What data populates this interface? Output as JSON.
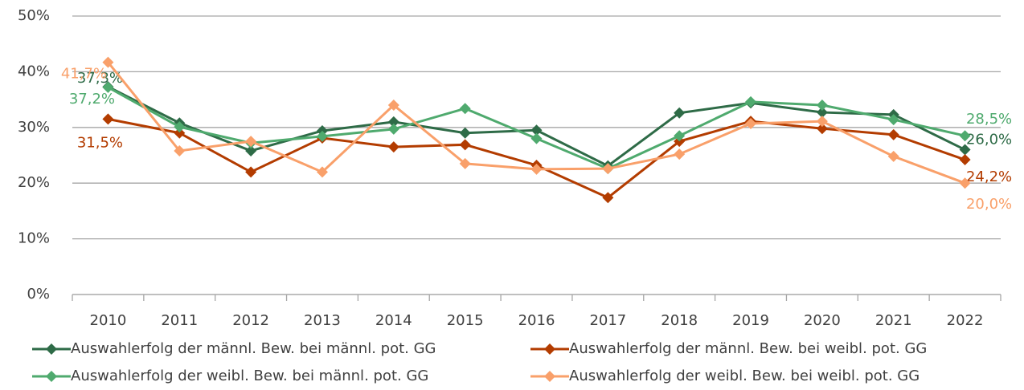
{
  "chart_data": {
    "type": "line",
    "categories": [
      "2010",
      "2011",
      "2012",
      "2013",
      "2014",
      "2015",
      "2016",
      "2017",
      "2018",
      "2019",
      "2020",
      "2021",
      "2022"
    ],
    "series": [
      {
        "name": "Auswahlerfolg der männl. Bew. bei männl. pot. GG",
        "color": "#2e6b47",
        "values": [
          37.3,
          30.8,
          25.8,
          29.4,
          31.0,
          29.0,
          29.5,
          23.1,
          32.6,
          34.4,
          32.7,
          32.3,
          26.0
        ],
        "value_labels": [
          "37,3%",
          null,
          null,
          null,
          null,
          null,
          null,
          null,
          null,
          null,
          null,
          null,
          "26,0%"
        ]
      },
      {
        "name": "Auswahlerfolg der männl. Bew. bei weibl. pot. GG",
        "color": "#b33c00",
        "values": [
          31.5,
          29.0,
          22.0,
          28.1,
          26.5,
          26.9,
          23.2,
          17.4,
          27.5,
          31.1,
          29.8,
          28.7,
          24.2
        ],
        "value_labels": [
          "31,5%",
          null,
          null,
          null,
          null,
          null,
          null,
          null,
          null,
          null,
          null,
          null,
          "24,2%"
        ]
      },
      {
        "name": "Auswahlerfolg der weibl. Bew. bei männl. pot. GG",
        "color": "#4faa6e",
        "values": [
          37.2,
          30.1,
          27.2,
          28.4,
          29.7,
          33.4,
          28.0,
          22.6,
          28.5,
          34.6,
          34.0,
          31.4,
          28.5
        ],
        "value_labels": [
          "37,2%",
          null,
          null,
          null,
          null,
          null,
          null,
          null,
          null,
          null,
          null,
          null,
          "28,5%"
        ]
      },
      {
        "name": "Auswahlerfolg der weibl. Bew. bei weibl. pot. GG",
        "color": "#f9a06a",
        "values": [
          41.7,
          25.8,
          27.5,
          22.0,
          34.0,
          23.5,
          22.5,
          22.6,
          25.2,
          30.7,
          31.1,
          24.8,
          20.0
        ],
        "value_labels": [
          "41,7%",
          null,
          null,
          null,
          null,
          null,
          null,
          null,
          null,
          null,
          null,
          null,
          "20,0%"
        ]
      }
    ],
    "ylim": [
      0,
      50
    ],
    "yticks": [
      {
        "value": 0,
        "label": "0%"
      },
      {
        "value": 10,
        "label": "10%"
      },
      {
        "value": 20,
        "label": "20%"
      },
      {
        "value": 30,
        "label": "30%"
      },
      {
        "value": 40,
        "label": "40%"
      },
      {
        "value": 50,
        "label": "50%"
      }
    ],
    "grid": true
  }
}
